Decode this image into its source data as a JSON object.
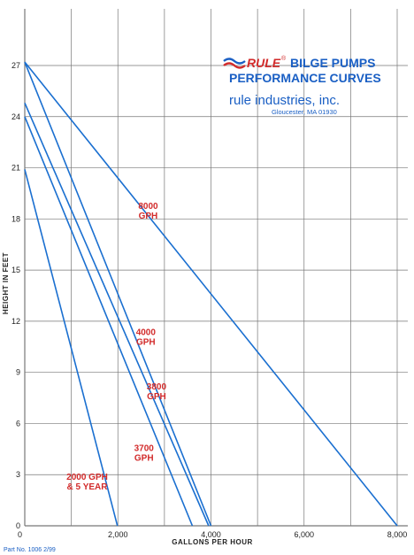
{
  "chart_data": {
    "type": "line",
    "xlabel": "GALLONS PER HOUR",
    "ylabel": "HEIGHT IN FEET",
    "xlim": [
      0,
      8000
    ],
    "ylim": [
      0,
      28.5
    ],
    "x_ticks": [
      {
        "value": 0,
        "label": "0"
      },
      {
        "value": 2000,
        "label": "2,000"
      },
      {
        "value": 4000,
        "label": "4,000"
      },
      {
        "value": 6000,
        "label": "6,000"
      },
      {
        "value": 8000,
        "label": "8,000"
      }
    ],
    "y_ticks": [
      {
        "value": 0,
        "label": "0"
      },
      {
        "value": 3,
        "label": "3"
      },
      {
        "value": 6,
        "label": "6"
      },
      {
        "value": 9,
        "label": "9"
      },
      {
        "value": 12,
        "label": "12"
      },
      {
        "value": 15,
        "label": "15"
      },
      {
        "value": 18,
        "label": "18"
      },
      {
        "value": 21,
        "label": "21"
      },
      {
        "value": 24,
        "label": "24"
      },
      {
        "value": 27,
        "label": "27"
      }
    ],
    "grid_x": [
      0,
      1000,
      2000,
      3000,
      4000,
      5000,
      6000,
      7000,
      8000
    ],
    "grid_y": [
      0,
      3,
      6,
      9,
      12,
      15,
      18,
      21,
      24,
      27
    ],
    "grid": true,
    "line_color": "#1a6fd0",
    "label_color": "#d22b2b",
    "series": [
      {
        "name": "8000 GPH",
        "label_lines": [
          "8000",
          "GPH"
        ],
        "x": [
          0,
          8000
        ],
        "y": [
          27.2,
          0
        ],
        "label_at": {
          "x": 2650,
          "y": 18.6
        }
      },
      {
        "name": "4000 GPH",
        "label_lines": [
          "4000",
          "GPH"
        ],
        "x": [
          0,
          4000
        ],
        "y": [
          27.2,
          0
        ],
        "label_at": {
          "x": 2600,
          "y": 11.2
        }
      },
      {
        "name": "3800 GPH",
        "label_lines": [
          "3800",
          "GPH"
        ],
        "x": [
          0,
          3950
        ],
        "y": [
          24.8,
          0
        ],
        "label_at": {
          "x": 2830,
          "y": 8.0
        }
      },
      {
        "name": "3700 GPH",
        "label_lines": [
          "3700",
          "GPH"
        ],
        "x": [
          0,
          3600
        ],
        "y": [
          24.0,
          0
        ],
        "label_at": {
          "x": 2560,
          "y": 4.4
        }
      },
      {
        "name": "2000 GPH & 5 YEAR",
        "label_lines": [
          "2000 GPH",
          "& 5 YEAR"
        ],
        "x": [
          0,
          1990
        ],
        "y": [
          20.9,
          0
        ],
        "label_at": {
          "x": 1340,
          "y": 2.7
        }
      }
    ]
  },
  "brand": {
    "logo_text": "RULE",
    "registered": "®",
    "title_line1": "BILGE PUMPS",
    "title_line2": "PERFORMANCE CURVES",
    "company": "rule industries, inc.",
    "location": "Gloucester, MA 01930"
  },
  "footer": {
    "part_no": "Part No. 1006  2/99"
  }
}
